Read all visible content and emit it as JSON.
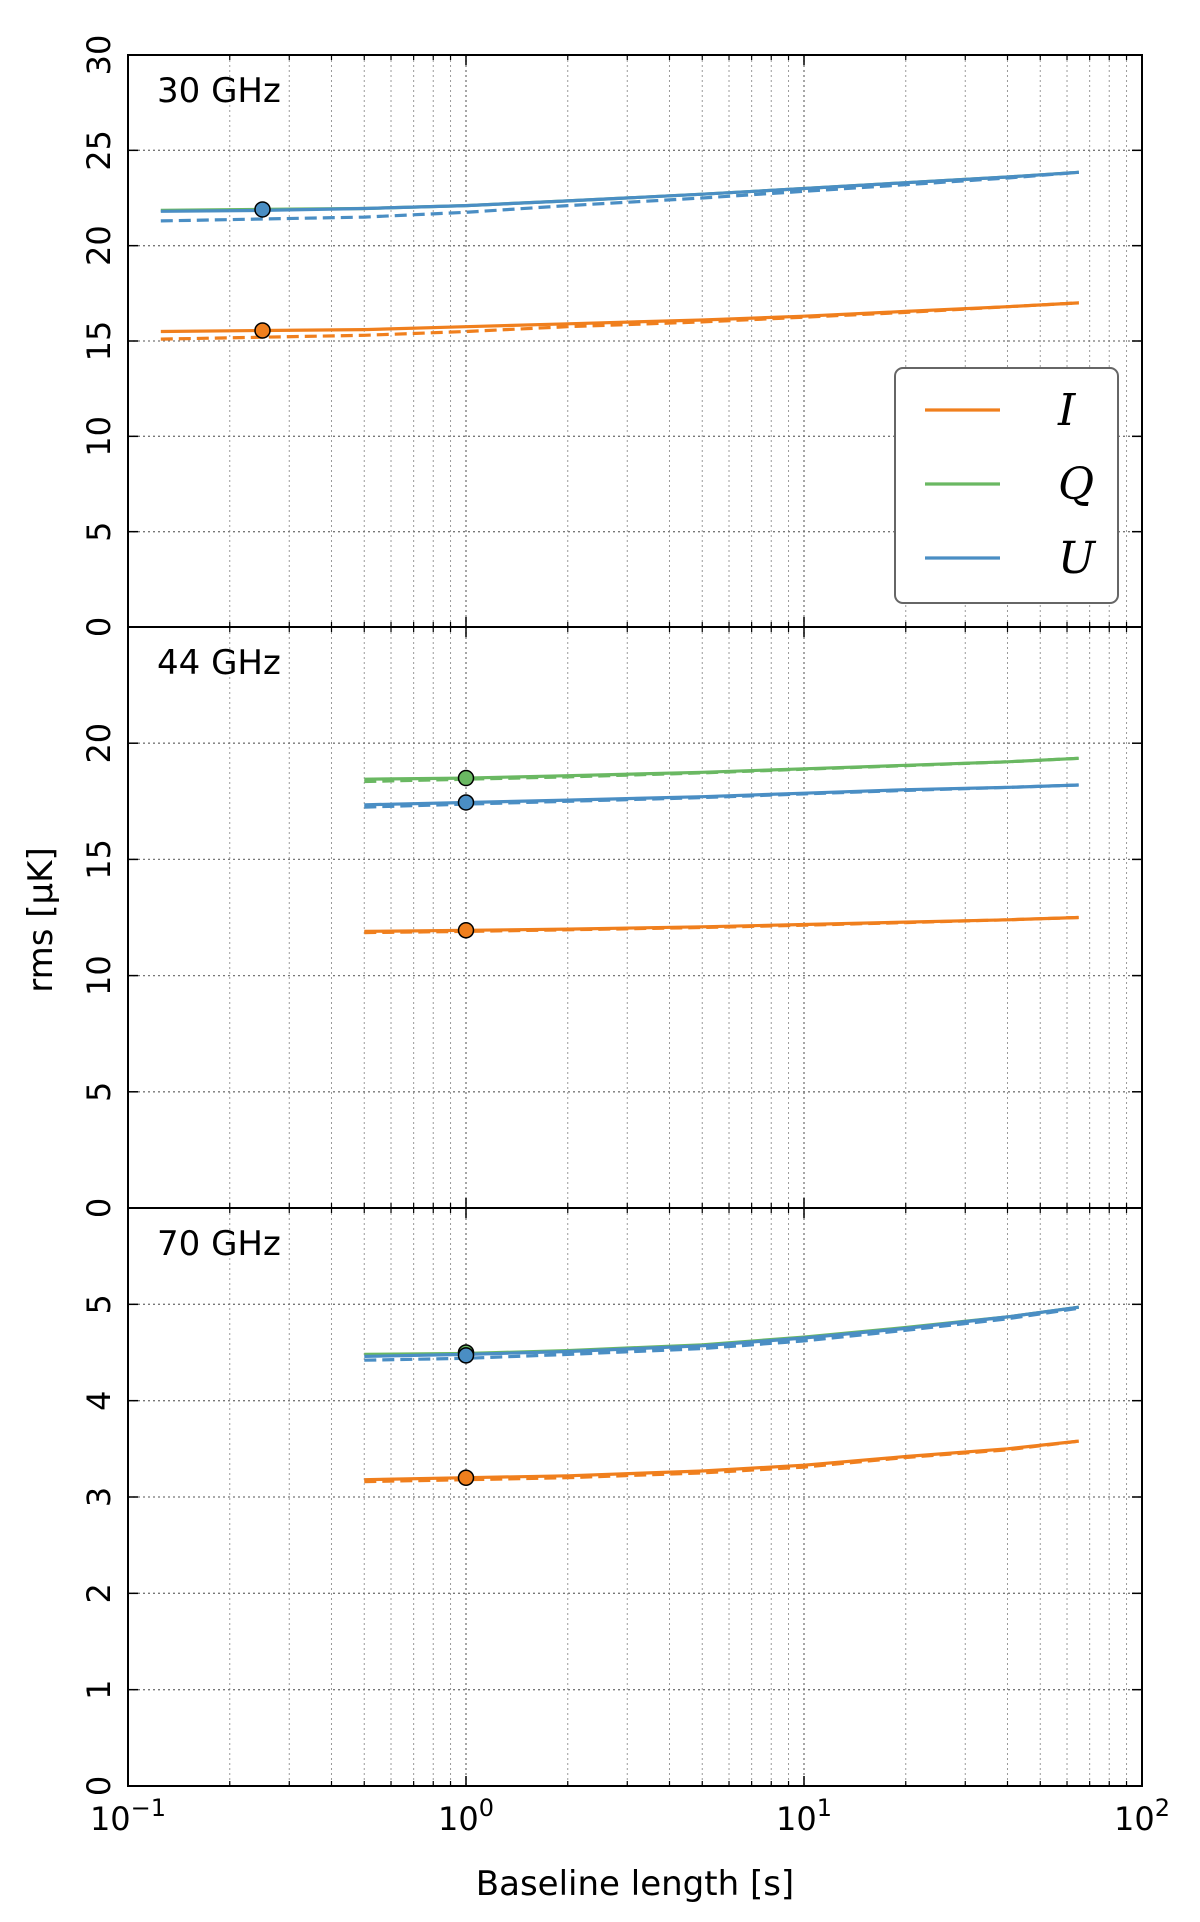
{
  "chart_data": {
    "type": "line",
    "xlabel": "Baseline length [s]",
    "ylabel": "rms [μK]",
    "x_scale": "log",
    "xlim": [
      0.1,
      100
    ],
    "x_ticks": [
      {
        "base": "10",
        "exp": "−1"
      },
      {
        "base": "10",
        "exp": "0"
      },
      {
        "base": "10",
        "exp": "1"
      },
      {
        "base": "10",
        "exp": "2"
      }
    ],
    "grid": true,
    "legend": {
      "placement": "top-right panel, right side",
      "entries": [
        {
          "label": "I",
          "color": "#f07f1d"
        },
        {
          "label": "Q",
          "color": "#6ab862"
        },
        {
          "label": "U",
          "color": "#4a8ec4"
        }
      ]
    },
    "line_styles": {
      "solid": "solid",
      "dashed": "dashed"
    },
    "panels": [
      {
        "label": "30 GHz",
        "ylim": [
          0,
          30
        ],
        "yticks": [
          0,
          5,
          10,
          15,
          20,
          25,
          30
        ],
        "series": [
          {
            "name": "I",
            "color": "#f07f1d",
            "style": "solid",
            "x": [
              0.125,
              0.25,
              0.5,
              1,
              2,
              5,
              10,
              20,
              40,
              65
            ],
            "y": [
              15.5,
              15.55,
              15.6,
              15.75,
              15.9,
              16.1,
              16.3,
              16.55,
              16.8,
              17.0
            ]
          },
          {
            "name": "I",
            "color": "#f07f1d",
            "style": "dashed",
            "x": [
              0.125,
              0.25,
              0.5,
              1,
              2,
              5,
              10,
              20,
              40,
              65
            ],
            "y": [
              15.1,
              15.2,
              15.3,
              15.5,
              15.75,
              16.0,
              16.25,
              16.5,
              16.8,
              17.0
            ]
          },
          {
            "name": "Q",
            "color": "#6ab862",
            "style": "solid",
            "x": [
              0.125,
              0.25,
              0.5,
              1,
              2,
              5,
              10,
              20,
              40,
              65
            ],
            "y": [
              21.85,
              21.9,
              21.95,
              22.1,
              22.35,
              22.7,
              23.0,
              23.3,
              23.6,
              23.85
            ]
          },
          {
            "name": "U",
            "color": "#4a8ec4",
            "style": "solid",
            "x": [
              0.125,
              0.25,
              0.5,
              1,
              2,
              5,
              10,
              20,
              40,
              65
            ],
            "y": [
              21.8,
              21.85,
              21.95,
              22.1,
              22.35,
              22.7,
              23.0,
              23.3,
              23.6,
              23.85
            ]
          },
          {
            "name": "U",
            "color": "#4a8ec4",
            "style": "dashed",
            "x": [
              0.125,
              0.25,
              0.5,
              1,
              2,
              5,
              10,
              20,
              40,
              65
            ],
            "y": [
              21.3,
              21.4,
              21.5,
              21.75,
              22.1,
              22.5,
              22.85,
              23.2,
              23.55,
              23.85
            ]
          }
        ],
        "markers": [
          {
            "name": "I",
            "color": "#f07f1d",
            "x": 0.25,
            "y": 15.55
          },
          {
            "name": "U",
            "color": "#4a8ec4",
            "x": 0.25,
            "y": 21.9
          }
        ]
      },
      {
        "label": "44 GHz",
        "ylim": [
          0,
          25
        ],
        "yticks": [
          0,
          5,
          10,
          15,
          20
        ],
        "series": [
          {
            "name": "I",
            "color": "#f07f1d",
            "style": "solid",
            "x": [
              0.5,
              1,
              2,
              5,
              10,
              20,
              40,
              65
            ],
            "y": [
              11.9,
              11.95,
              12.0,
              12.1,
              12.2,
              12.3,
              12.4,
              12.5
            ]
          },
          {
            "name": "I",
            "color": "#f07f1d",
            "style": "dashed",
            "x": [
              0.5,
              1,
              2,
              5,
              10,
              20,
              40,
              65
            ],
            "y": [
              11.85,
              11.9,
              11.97,
              12.07,
              12.17,
              12.28,
              12.4,
              12.5
            ]
          },
          {
            "name": "Q",
            "color": "#6ab862",
            "style": "solid",
            "x": [
              0.5,
              1,
              2,
              5,
              10,
              20,
              40,
              65
            ],
            "y": [
              18.45,
              18.5,
              18.6,
              18.75,
              18.9,
              19.05,
              19.2,
              19.35
            ]
          },
          {
            "name": "Q",
            "color": "#6ab862",
            "style": "dashed",
            "x": [
              0.5,
              1,
              2,
              5,
              10,
              20,
              40,
              65
            ],
            "y": [
              18.35,
              18.45,
              18.55,
              18.72,
              18.88,
              19.03,
              19.2,
              19.35
            ]
          },
          {
            "name": "U",
            "color": "#4a8ec4",
            "style": "solid",
            "x": [
              0.5,
              1,
              2,
              5,
              10,
              20,
              40,
              65
            ],
            "y": [
              17.35,
              17.45,
              17.55,
              17.7,
              17.85,
              18.0,
              18.1,
              18.2
            ]
          },
          {
            "name": "U",
            "color": "#4a8ec4",
            "style": "dashed",
            "x": [
              0.5,
              1,
              2,
              5,
              10,
              20,
              40,
              65
            ],
            "y": [
              17.25,
              17.38,
              17.5,
              17.66,
              17.82,
              17.97,
              18.1,
              18.2
            ]
          }
        ],
        "markers": [
          {
            "name": "Q",
            "color": "#6ab862",
            "x": 1,
            "y": 18.5
          },
          {
            "name": "U",
            "color": "#4a8ec4",
            "x": 1,
            "y": 17.45
          },
          {
            "name": "I",
            "color": "#f07f1d",
            "x": 1,
            "y": 11.95
          }
        ]
      },
      {
        "label": "70 GHz",
        "ylim": [
          0,
          6
        ],
        "yticks": [
          0,
          1,
          2,
          3,
          4,
          5
        ],
        "series": [
          {
            "name": "I",
            "color": "#f07f1d",
            "style": "solid",
            "x": [
              0.5,
              1,
              2,
              5,
              10,
              20,
              40,
              65
            ],
            "y": [
              3.18,
              3.2,
              3.22,
              3.27,
              3.33,
              3.42,
              3.5,
              3.58
            ]
          },
          {
            "name": "I",
            "color": "#f07f1d",
            "style": "dashed",
            "x": [
              0.5,
              1,
              2,
              5,
              10,
              20,
              40,
              65
            ],
            "y": [
              3.16,
              3.18,
              3.2,
              3.25,
              3.31,
              3.41,
              3.49,
              3.58
            ]
          },
          {
            "name": "Q",
            "color": "#6ab862",
            "style": "solid",
            "x": [
              0.5,
              1,
              2,
              5,
              10,
              20,
              40,
              65
            ],
            "y": [
              4.48,
              4.49,
              4.52,
              4.58,
              4.66,
              4.76,
              4.87,
              4.97
            ]
          },
          {
            "name": "U",
            "color": "#4a8ec4",
            "style": "solid",
            "x": [
              0.5,
              1,
              2,
              5,
              10,
              20,
              40,
              65
            ],
            "y": [
              4.46,
              4.48,
              4.51,
              4.57,
              4.65,
              4.75,
              4.87,
              4.97
            ]
          },
          {
            "name": "U",
            "color": "#4a8ec4",
            "style": "dashed",
            "x": [
              0.5,
              1,
              2,
              5,
              10,
              20,
              40,
              65
            ],
            "y": [
              4.42,
              4.44,
              4.48,
              4.54,
              4.62,
              4.73,
              4.85,
              4.96
            ]
          }
        ],
        "markers": [
          {
            "name": "Q",
            "color": "#6ab862",
            "x": 1,
            "y": 4.5
          },
          {
            "name": "U",
            "color": "#4a8ec4",
            "x": 1,
            "y": 4.47
          },
          {
            "name": "I",
            "color": "#f07f1d",
            "x": 1,
            "y": 3.2
          }
        ]
      }
    ]
  }
}
